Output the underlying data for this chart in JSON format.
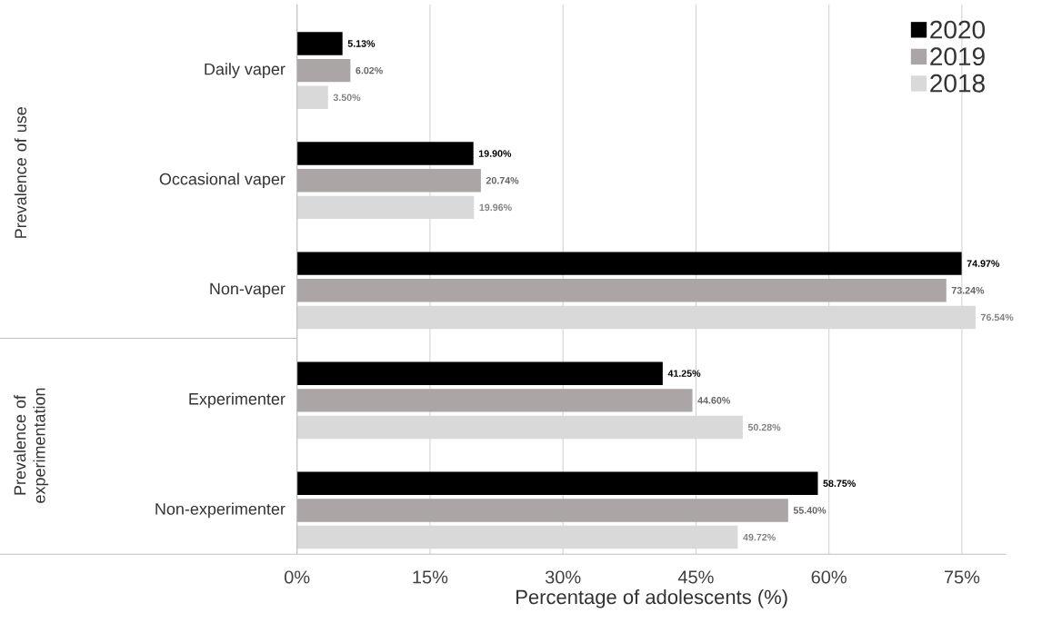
{
  "chart_data": {
    "type": "bar",
    "orientation": "horizontal",
    "xlabel": "Percentage of adolescents (%)",
    "categories": [
      "Daily vaper",
      "Occasional vaper",
      "Non-vaper",
      "Experimenter",
      "Non-experimenter"
    ],
    "series": [
      {
        "name": "2020",
        "color": "#000000",
        "values": [
          5.13,
          19.9,
          74.97,
          41.25,
          58.75
        ],
        "value_labels": [
          "5.13%",
          "19.90%",
          "74.97%",
          "41.25%",
          "58.75%"
        ]
      },
      {
        "name": "2019",
        "color": "#aba5a5",
        "values": [
          6.02,
          20.74,
          73.24,
          44.6,
          55.4
        ],
        "value_labels": [
          "6.02%",
          "20.74%",
          "73.24%",
          "44.60%",
          "55.40%"
        ]
      },
      {
        "name": "2018",
        "color": "#d9d9d9",
        "values": [
          3.5,
          19.96,
          76.54,
          50.28,
          49.72
        ],
        "value_labels": [
          "3.50%",
          "19.96%",
          "76.54%",
          "50.28%",
          "49.72%"
        ]
      }
    ],
    "xlim": [
      0,
      80
    ],
    "xticks": [
      {
        "value": 0,
        "label": "0%"
      },
      {
        "value": 15,
        "label": "15%"
      },
      {
        "value": 30,
        "label": "30%"
      },
      {
        "value": 45,
        "label": "45%"
      },
      {
        "value": 60,
        "label": "60%"
      },
      {
        "value": 75,
        "label": "75%"
      }
    ],
    "grid": "x",
    "legend": "top right",
    "annotations": [
      "Prevalence of use",
      "Prevalence of experimentation"
    ]
  }
}
